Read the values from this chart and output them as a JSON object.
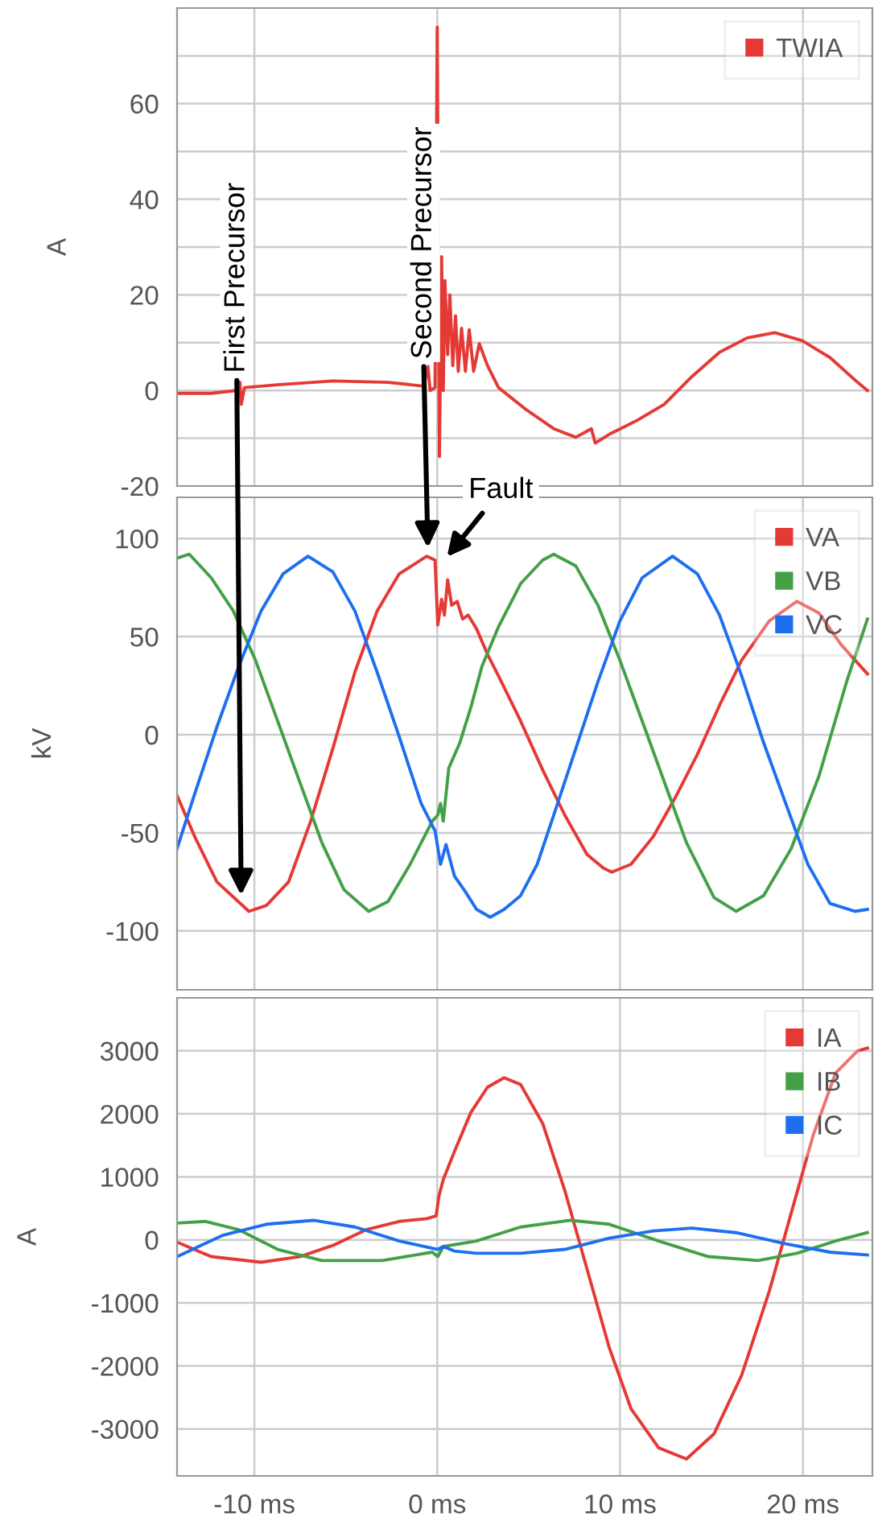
{
  "chart_data": [
    {
      "type": "line",
      "ylabel": "A",
      "xlim": [
        -14.23,
        23.8
      ],
      "xticks": [
        {
          "value": -10,
          "label": null
        },
        {
          "value": 0,
          "label": null
        },
        {
          "value": 10,
          "label": null
        },
        {
          "value": 20,
          "label": null
        }
      ],
      "ylim": [
        -20,
        80
      ],
      "yticks": [
        -20,
        {
          "value": -10,
          "label": null
        },
        0,
        {
          "value": 10,
          "label": null
        },
        20,
        {
          "value": 30,
          "label": null
        },
        40,
        {
          "value": 50,
          "label": null
        },
        60,
        {
          "value": 70,
          "label": null
        }
      ],
      "grid": true,
      "legend": "top right",
      "tick_labels": "y",
      "annotations": [
        {
          "text": "First Precursor",
          "x": -10.72,
          "y": -2.9
        },
        {
          "text": "Second Precursor",
          "x": -0.5,
          "y": 0
        }
      ],
      "series": [
        {
          "name": "TWIA",
          "color": "#e53935",
          "x": [
            -14.23,
            -12.36,
            -11.0,
            -10.79,
            -10.72,
            -10.54,
            -8.73,
            -5.71,
            -2.69,
            -0.73,
            -0.51,
            -0.39,
            -0.12,
            0,
            0.12,
            0.24,
            0.33,
            0.42,
            0.57,
            0.69,
            0.85,
            1.0,
            1.15,
            1.33,
            1.54,
            1.75,
            1.99,
            2.3,
            2.75,
            3.35,
            4.86,
            6.37,
            7.58,
            8.43,
            8.64,
            9.4,
            10.91,
            12.42,
            13.93,
            15.44,
            16.95,
            18.46,
            19.97,
            21.48,
            22.99,
            23.53
          ],
          "values": [
            -0.6,
            -0.6,
            0,
            1.7,
            -2.9,
            0.6,
            1.2,
            2.0,
            1.7,
            0.9,
            5.0,
            0,
            0.6,
            76,
            -13.8,
            28,
            0,
            23,
            7.5,
            20,
            5.2,
            15.6,
            4.0,
            13,
            4.0,
            12.7,
            4.0,
            9.8,
            5.2,
            0.6,
            -4,
            -8,
            -9.8,
            -8,
            -11,
            -9.2,
            -6.3,
            -2.9,
            2.9,
            8,
            11,
            12.1,
            10.4,
            6.9,
            1.7,
            0
          ]
        }
      ]
    },
    {
      "type": "line",
      "ylabel": "kV",
      "xlim": [
        -14.23,
        23.8
      ],
      "xticks": [
        {
          "value": -10,
          "label": null
        },
        {
          "value": 0,
          "label": null
        },
        {
          "value": 10,
          "label": null
        },
        {
          "value": 20,
          "label": null
        }
      ],
      "ylim": [
        -130,
        121
      ],
      "yticks": [
        -100,
        -50,
        0,
        50,
        100
      ],
      "grid": true,
      "legend": "top right",
      "tick_labels": "y",
      "annotations": [
        {
          "text": "Fault",
          "x": 0.3,
          "y": 88
        }
      ],
      "series": [
        {
          "name": "VA",
          "color": "#e53935",
          "x": [
            -14.23,
            -13.26,
            -12.05,
            -10.3,
            -9.34,
            -8.13,
            -6.92,
            -5.71,
            -4.5,
            -3.29,
            -2.08,
            -0.57,
            -0.12,
            0.03,
            0.24,
            0.39,
            0.57,
            0.79,
            1.09,
            1.39,
            1.69,
            2.15,
            2.75,
            3.35,
            4.56,
            5.77,
            6.98,
            8.19,
            9.09,
            9.55,
            10.6,
            11.81,
            13.02,
            14.23,
            15.44,
            16.65,
            18.16,
            19.67,
            20.88,
            22.08,
            23.53
          ],
          "values": [
            -31,
            -52,
            -75,
            -90,
            -87,
            -75,
            -44,
            -7,
            32,
            63,
            82,
            91,
            89,
            56,
            69,
            61,
            79,
            66,
            68,
            59,
            61,
            54,
            41,
            30,
            7,
            -18,
            -41,
            -61,
            -68,
            -70,
            -66,
            -52,
            -32,
            -10,
            15,
            38,
            58,
            68,
            62,
            46,
            31
          ]
        },
        {
          "name": "VB",
          "color": "#43a047",
          "x": [
            -14.23,
            -13.56,
            -12.36,
            -11.15,
            -9.94,
            -8.73,
            -7.52,
            -6.31,
            -5.1,
            -3.75,
            -2.69,
            -1.48,
            -0.27,
            0.03,
            0.18,
            0.33,
            0.63,
            1.24,
            1.84,
            2.45,
            3.35,
            4.56,
            5.77,
            6.37,
            7.58,
            8.79,
            9.99,
            11.21,
            12.42,
            13.63,
            15.14,
            16.34,
            17.85,
            19.36,
            20.88,
            22.39,
            23.53
          ],
          "values": [
            90,
            92,
            80,
            63,
            38,
            7,
            -24,
            -55,
            -79,
            -90,
            -85,
            -66,
            -44,
            -41,
            -35,
            -44,
            -17,
            -4,
            14,
            35,
            55,
            77,
            89,
            92,
            86,
            66,
            38,
            7,
            -24,
            -55,
            -83,
            -90,
            -82,
            -58,
            -21,
            27,
            59
          ]
        },
        {
          "name": "VC",
          "color": "#1e6ff0",
          "x": [
            -14.23,
            -13.26,
            -12.05,
            -10.85,
            -9.64,
            -8.43,
            -7.07,
            -5.71,
            -4.5,
            -3.29,
            -2.08,
            -0.88,
            -0.12,
            0.18,
            0.48,
            0.94,
            1.54,
            2.15,
            2.9,
            3.66,
            4.56,
            5.47,
            6.37,
            7.58,
            8.79,
            9.99,
            11.21,
            12.87,
            14.23,
            15.44,
            16.65,
            17.85,
            19.06,
            20.27,
            21.48,
            22.84,
            23.53
          ],
          "values": [
            -58,
            -30,
            4,
            35,
            63,
            82,
            91,
            83,
            63,
            32,
            -1,
            -35,
            -49,
            -66,
            -56,
            -72,
            -80,
            -89,
            -93,
            -89,
            -82,
            -66,
            -41,
            -7,
            27,
            58,
            80,
            91,
            82,
            61,
            30,
            -4,
            -35,
            -66,
            -86,
            -90,
            -89
          ]
        }
      ]
    },
    {
      "type": "line",
      "ylabel": "A",
      "xlim": [
        -14.23,
        23.8
      ],
      "xticks": [
        {
          "value": -10,
          "label": "-10 ms"
        },
        {
          "value": 0,
          "label": "0 ms"
        },
        {
          "value": 10,
          "label": "10 ms"
        },
        {
          "value": 20,
          "label": "20 ms"
        }
      ],
      "ylim": [
        -3745,
        3840
      ],
      "yticks": [
        -3000,
        -2000,
        -1000,
        0,
        1000,
        2000,
        3000
      ],
      "grid": true,
      "legend": "top right",
      "series": [
        {
          "name": "IA",
          "color": "#e53935",
          "x": [
            -14.23,
            -12.36,
            -9.64,
            -7.52,
            -5.71,
            -3.9,
            -2.08,
            -0.57,
            -0.06,
            0.09,
            0.33,
            0.94,
            1.84,
            2.75,
            3.66,
            4.56,
            5.77,
            6.98,
            8.19,
            9.4,
            10.6,
            12.11,
            13.63,
            15.14,
            16.65,
            18.16,
            19.36,
            20.57,
            21.78,
            22.99,
            23.53
          ],
          "values": [
            -35,
            -266,
            -355,
            -266,
            -89,
            160,
            293,
            337,
            381,
            692,
            958,
            1401,
            2022,
            2422,
            2572,
            2466,
            1845,
            781,
            -461,
            -1703,
            -2679,
            -3300,
            -3477,
            -3078,
            -2147,
            -816,
            426,
            1668,
            2643,
            2998,
            3042
          ]
        },
        {
          "name": "IB",
          "color": "#43a047",
          "x": [
            -14.23,
            -12.66,
            -10.85,
            -8.73,
            -6.31,
            -3.0,
            -0.27,
            0.03,
            0.33,
            2.15,
            4.56,
            7.28,
            9.4,
            12.11,
            14.83,
            17.55,
            19.67,
            21.78,
            23.53
          ],
          "values": [
            266,
            293,
            160,
            -151,
            -328,
            -328,
            -195,
            -266,
            -106,
            -18,
            204,
            310,
            248,
            -18,
            -266,
            -328,
            -213,
            -18,
            115
          ]
        },
        {
          "name": "IC",
          "color": "#1e6ff0",
          "x": [
            -14.23,
            -11.75,
            -9.34,
            -6.77,
            -4.5,
            -2.08,
            0.03,
            0.33,
            0.94,
            2.15,
            4.56,
            6.98,
            9.4,
            11.81,
            13.93,
            16.34,
            19.06,
            21.48,
            23.53
          ],
          "values": [
            -266,
            71,
            248,
            310,
            204,
            -18,
            -151,
            -106,
            -177,
            -213,
            -213,
            -151,
            27,
            142,
            186,
            115,
            -62,
            -195,
            -240
          ]
        }
      ]
    }
  ]
}
